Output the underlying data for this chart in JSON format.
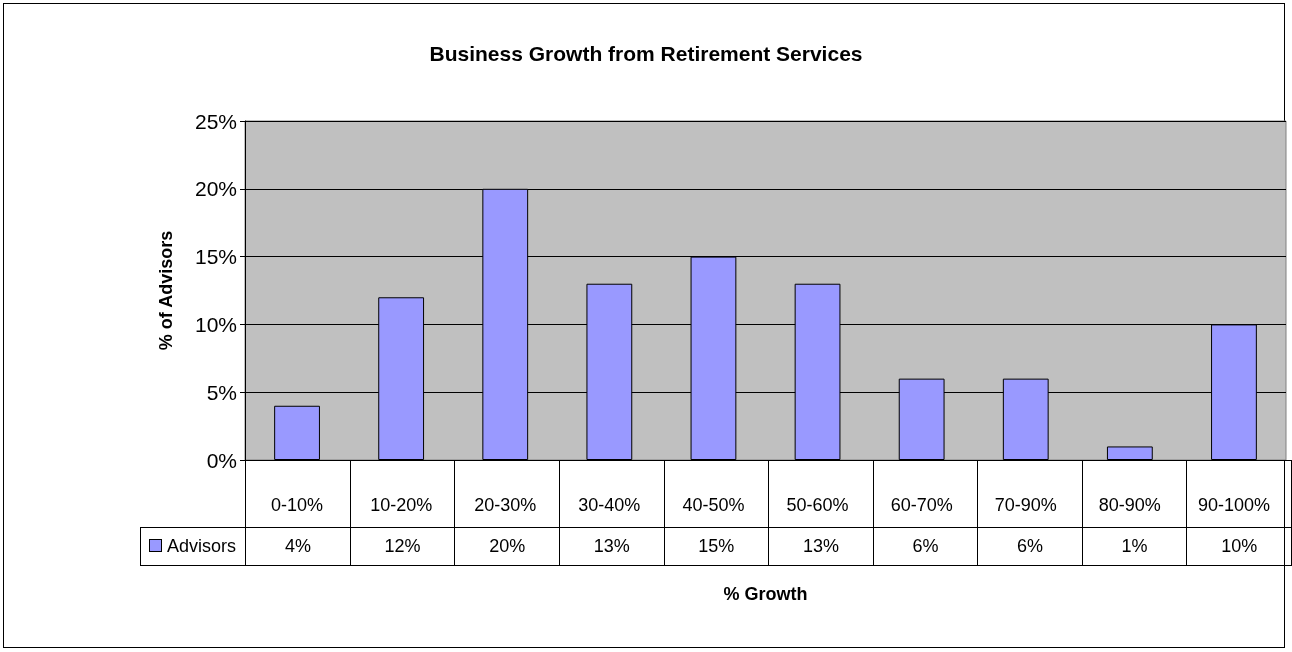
{
  "chart_data": {
    "type": "bar",
    "title": "Business Growth from Retirement Services",
    "xlabel": "% Growth",
    "ylabel": "% of Advisors",
    "categories": [
      "0-10%",
      "10-20%",
      "20-30%",
      "30-40%",
      "40-50%",
      "50-60%",
      "60-70%",
      "70-90%",
      "80-90%",
      "90-100%"
    ],
    "series": [
      {
        "name": "Advisors",
        "color": "#9999ff",
        "values": [
          4,
          12,
          20,
          13,
          15,
          13,
          6,
          6,
          1,
          10
        ],
        "value_labels": [
          "4%",
          "12%",
          "20%",
          "13%",
          "15%",
          "13%",
          "6%",
          "6%",
          "1%",
          "10%"
        ]
      }
    ],
    "ylim": [
      0,
      25
    ],
    "yticks": [
      {
        "value": 0,
        "label": "0%"
      },
      {
        "value": 5,
        "label": "5%"
      },
      {
        "value": 10,
        "label": "10%"
      },
      {
        "value": 15,
        "label": "15%"
      },
      {
        "value": 20,
        "label": "20%"
      },
      {
        "value": 25,
        "label": "25%"
      }
    ],
    "grid": "y",
    "legend": "bottom left"
  }
}
